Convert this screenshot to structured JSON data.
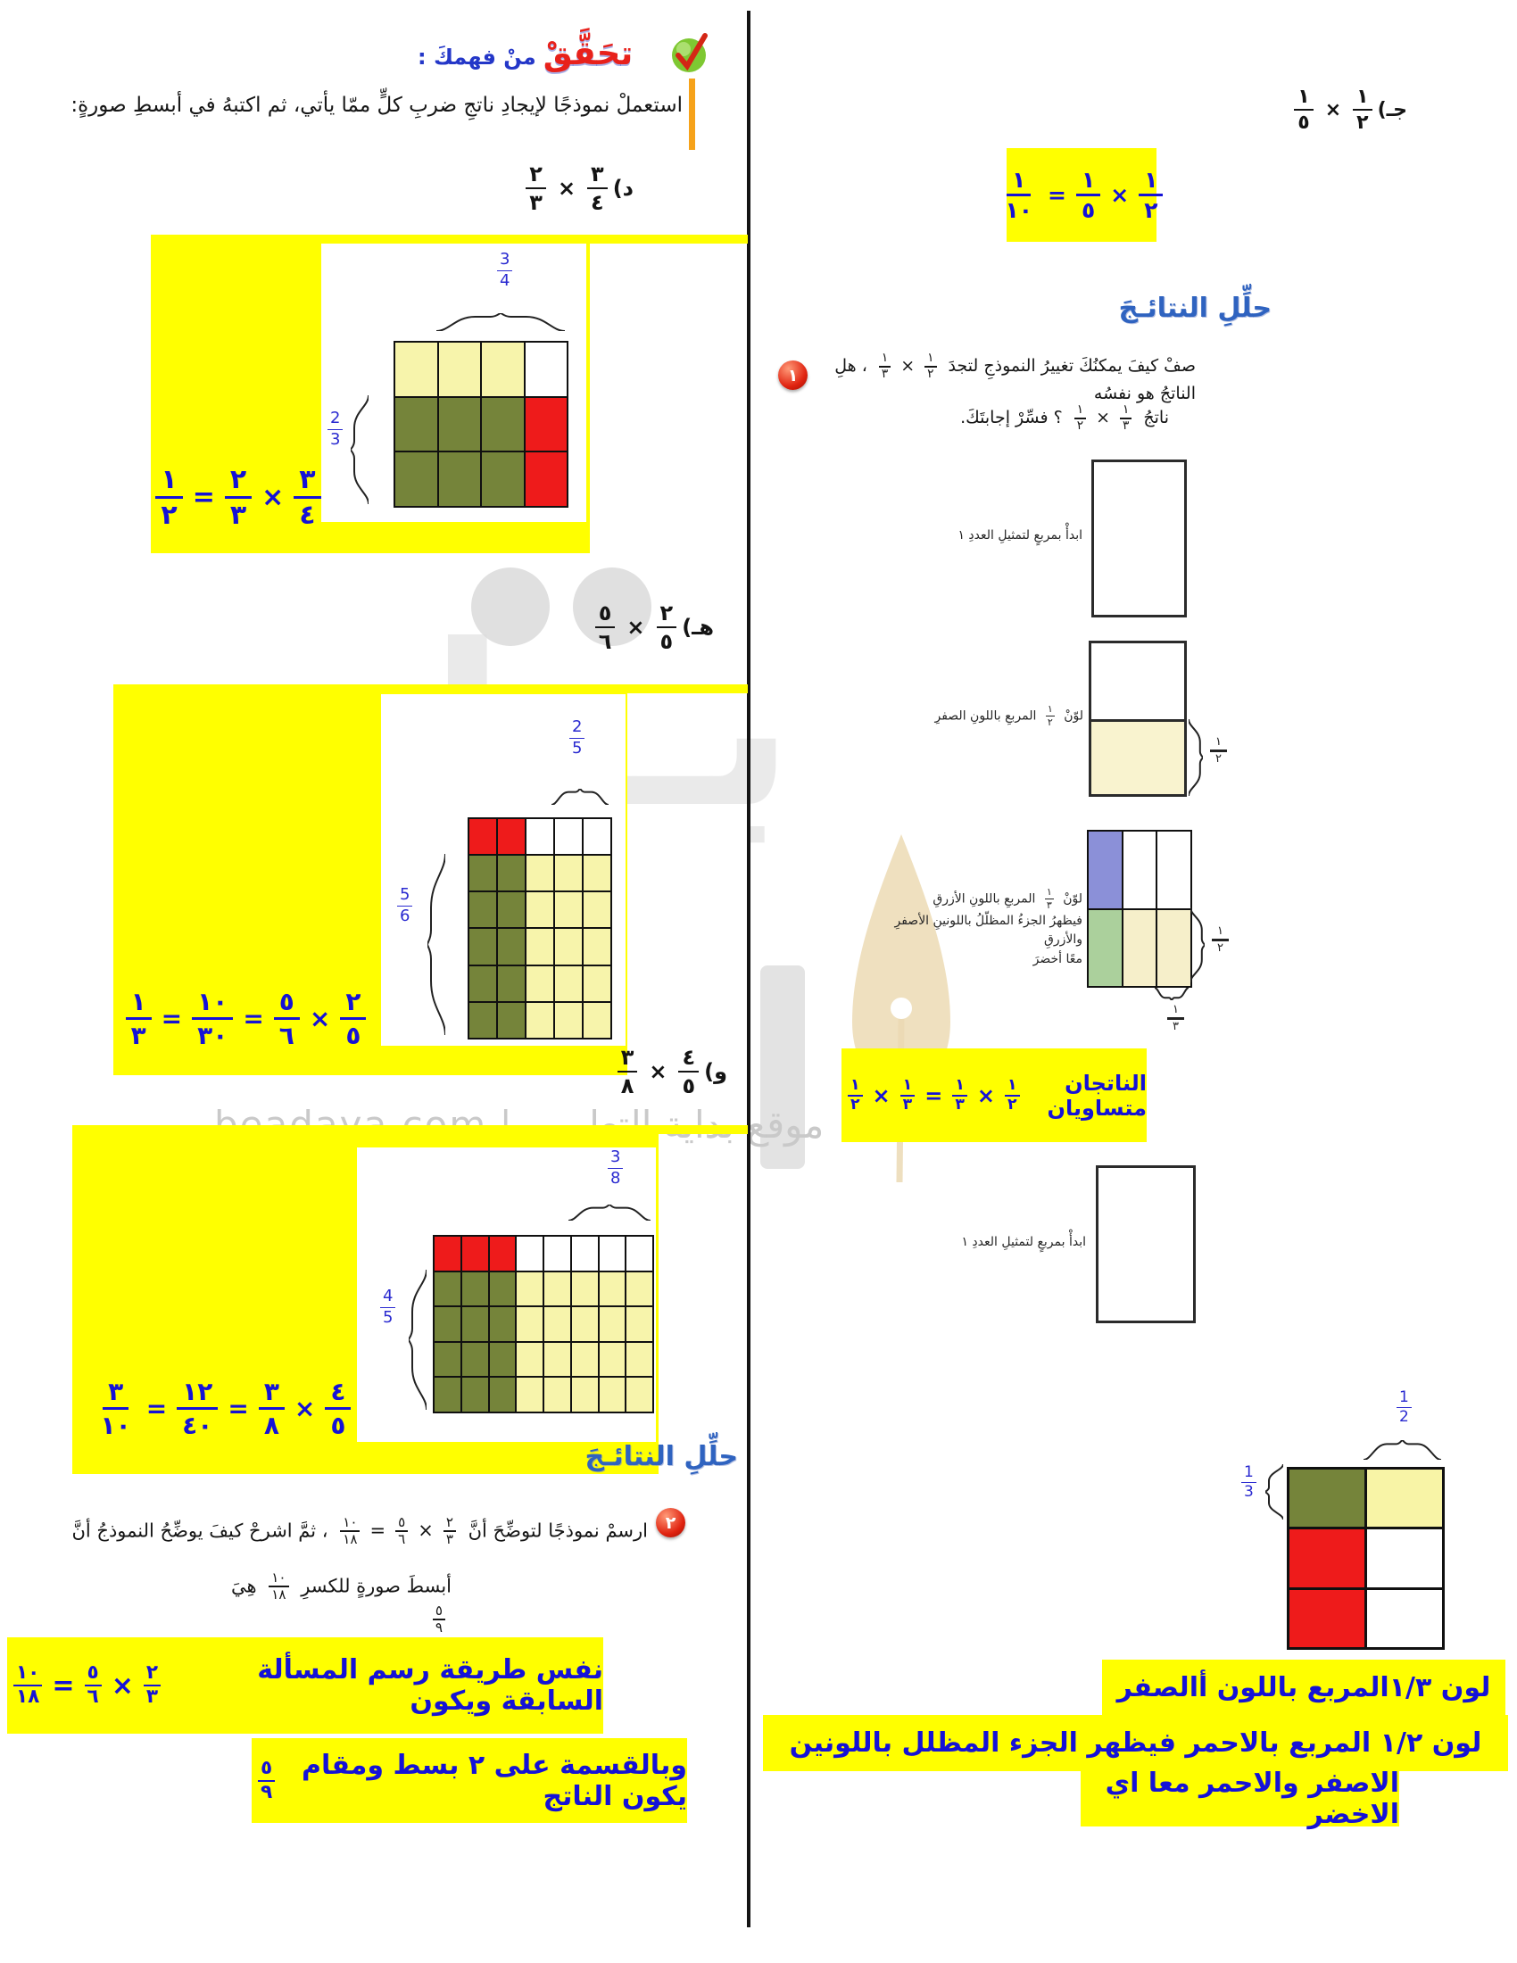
{
  "colors": {
    "white": "#ffffff",
    "cream": "#f7f4ab",
    "olive": "#75843a",
    "red": "#ee1b1b",
    "periwinkle": "#8b90d8",
    "lightgreen": "#abd09c",
    "cream2": "#f6efca",
    "paleyellow": "#f8f4a6",
    "highlight": "#ffff00",
    "ink_blue": "#1512d6",
    "header_blue": "#2f63c0",
    "logo_red": "#e8211b",
    "accent_orange": "#f6a21a"
  },
  "watermark": {
    "big_word": "بـدايـة",
    "site_line": "موقع بداية التعليمي | beadaya.com"
  },
  "left": {
    "check_title_red": "تحَقَّقْ",
    "check_title_blue": "منْ فهمكَ :",
    "instruction": "استعملْ نموذجًا لإيجادِ ناتجِ ضربِ كلٍّ ممّا يأتي، ثم اكتبهُ في أبسطِ صورةٍ:",
    "ex_d": [
      {
        "t": "د)  "
      },
      {
        "n": "٣",
        "d": "٤"
      },
      {
        "op": "×"
      },
      {
        "n": "٢",
        "d": "٣"
      }
    ],
    "model_d": {
      "top_label": {
        "n": "3",
        "d": "4"
      },
      "side_label": {
        "n": "2",
        "d": "3"
      },
      "grid": {
        "rows": [
          [
            "white",
            "cream",
            "cream",
            "cream"
          ],
          [
            "red",
            "olive",
            "olive",
            "olive"
          ],
          [
            "red",
            "olive",
            "olive",
            "olive"
          ]
        ]
      },
      "equation": [
        {
          "n": "٣",
          "d": "٤"
        },
        {
          "op": "×"
        },
        {
          "n": "٢",
          "d": "٣"
        },
        {
          "op": "="
        },
        {
          "n": "١",
          "d": "٢"
        }
      ]
    },
    "ex_h": [
      {
        "t": "هـ)  "
      },
      {
        "n": "٢",
        "d": "٥"
      },
      {
        "op": "×"
      },
      {
        "n": "٥",
        "d": "٦"
      }
    ],
    "model_h": {
      "top_label": {
        "n": "2",
        "d": "5"
      },
      "side_label": {
        "n": "5",
        "d": "6"
      },
      "grid": {
        "rows": [
          [
            "white",
            "white",
            "white",
            "red",
            "red"
          ],
          [
            "cream",
            "cream",
            "cream",
            "olive",
            "olive"
          ],
          [
            "cream",
            "cream",
            "cream",
            "olive",
            "olive"
          ],
          [
            "cream",
            "cream",
            "cream",
            "olive",
            "olive"
          ],
          [
            "cream",
            "cream",
            "cream",
            "olive",
            "olive"
          ],
          [
            "cream",
            "cream",
            "cream",
            "olive",
            "olive"
          ]
        ]
      },
      "equation": [
        {
          "n": "٢",
          "d": "٥"
        },
        {
          "op": "×"
        },
        {
          "n": "٥",
          "d": "٦"
        },
        {
          "op": "="
        },
        {
          "n": "١٠",
          "d": "٣٠"
        },
        {
          "op": "="
        },
        {
          "n": "١",
          "d": "٣"
        }
      ]
    },
    "ex_w": [
      {
        "t": "و)  "
      },
      {
        "n": "٤",
        "d": "٥"
      },
      {
        "op": "×"
      },
      {
        "n": "٣",
        "d": "٨"
      }
    ],
    "model_w": {
      "top_label": {
        "n": "3",
        "d": "8"
      },
      "side_label": {
        "n": "4",
        "d": "5"
      },
      "grid": {
        "rows": [
          [
            "white",
            "white",
            "white",
            "white",
            "white",
            "red",
            "red",
            "red"
          ],
          [
            "cream",
            "cream",
            "cream",
            "cream",
            "cream",
            "olive",
            "olive",
            "olive"
          ],
          [
            "cream",
            "cream",
            "cream",
            "cream",
            "cream",
            "olive",
            "olive",
            "olive"
          ],
          [
            "cream",
            "cream",
            "cream",
            "cream",
            "cream",
            "olive",
            "olive",
            "olive"
          ],
          [
            "cream",
            "cream",
            "cream",
            "cream",
            "cream",
            "olive",
            "olive",
            "olive"
          ]
        ]
      },
      "equation": [
        {
          "n": "٤",
          "d": "٥"
        },
        {
          "op": "×"
        },
        {
          "n": "٣",
          "d": "٨"
        },
        {
          "op": "="
        },
        {
          "n": "١٢",
          "d": "٤٠"
        },
        {
          "op": "="
        },
        {
          "n": "٣",
          "d": "١٠"
        }
      ]
    },
    "analyze_header": "حلِّلِ النتائـجَ",
    "q2_number": "٢",
    "q2_line1": [
      {
        "t": "ارسمْ نموذجًا لتوضِّحَ أنَّ "
      },
      {
        "n": "٢",
        "d": "٣"
      },
      {
        "op": "×"
      },
      {
        "n": "٥",
        "d": "٦"
      },
      {
        "op": "="
      },
      {
        "n": "١٠",
        "d": "١٨"
      },
      {
        "t": " ، ثمَّ اشرحْ كيفَ يوضِّحُ النموذجُ أنَّ"
      }
    ],
    "q2_line2": [
      {
        "t": "أبسطَ صورةٍ للكسرِ "
      },
      {
        "n": "١٠",
        "d": "١٨"
      },
      {
        "t": " هِيَ "
      },
      {
        "n": "٥",
        "d": "٩"
      }
    ],
    "answer1": [
      {
        "t": "نفس طريقة رسم المسألة السابقة ويكون "
      },
      {
        "n": "٢",
        "d": "٣"
      },
      {
        "op": "×"
      },
      {
        "n": "٥",
        "d": "٦"
      },
      {
        "op": "="
      },
      {
        "n": "١٠",
        "d": "١٨"
      }
    ],
    "answer2": [
      {
        "t": "وبالقسمة على ٢ بسط ومقام يكون الناتج "
      },
      {
        "n": "٥",
        "d": "٩"
      }
    ]
  },
  "right": {
    "ex_j": [
      {
        "t": "جـ)  "
      },
      {
        "n": "١",
        "d": "٢"
      },
      {
        "op": "×"
      },
      {
        "n": "١",
        "d": "٥"
      }
    ],
    "eq_j": [
      {
        "n": "١",
        "d": "٢"
      },
      {
        "op": "×"
      },
      {
        "n": "١",
        "d": "٥"
      },
      {
        "op": "="
      },
      {
        "n": "١",
        "d": "١٠"
      }
    ],
    "analyze_header": "حلِّلِ النتائـجَ",
    "q1_number": "١",
    "q1_line1": [
      {
        "t": "صفْ كيفَ يمكنُكَ تغييرُ النموذجِ لتجدَ "
      },
      {
        "n": "١",
        "d": "٢"
      },
      {
        "op": "×"
      },
      {
        "n": "١",
        "d": "٣"
      },
      {
        "t": " ، هلِ الناتجُ هو نفسُه"
      }
    ],
    "q1_line2": [
      {
        "t": "ناتجُ "
      },
      {
        "n": "١",
        "d": "٣"
      },
      {
        "op": "×"
      },
      {
        "n": "١",
        "d": "٢"
      },
      {
        "t": " ؟ فسِّرْ إجابتَكَ."
      }
    ],
    "caption_start_1": "ابدأْ بمربعٍ لتمثيلِ العددِ ١",
    "caption_half": [
      {
        "t": "لوّنْ "
      },
      {
        "n": "١",
        "d": "٢"
      },
      {
        "t": " المربعِ باللونِ الصفرِ"
      }
    ],
    "sq2_brace_label": {
      "n": "١",
      "d": "٢"
    },
    "caption_third_l1": [
      {
        "t": "لوّنْ "
      },
      {
        "n": "١",
        "d": "٣"
      },
      {
        "t": " المربعِ باللونِ الأزرقِ"
      }
    ],
    "caption_third_l2": "فيظهرُ الجزءُ المظلّلُ باللونينِ الأصفرِ والأزرقِ",
    "caption_third_l3": "معًا أخضرَ",
    "grid3": {
      "rows": [
        [
          "white",
          "white",
          "periwinkle"
        ],
        [
          "cream2",
          "cream2",
          "lightgreen"
        ]
      ]
    },
    "sq3_brace_right": {
      "n": "١",
      "d": "٢"
    },
    "sq3_brace_bottom": {
      "n": "١",
      "d": "٣"
    },
    "equal_line": [
      {
        "t": "الناتجان متساويان "
      },
      {
        "n": "١",
        "d": "٢"
      },
      {
        "op": "×"
      },
      {
        "n": "١",
        "d": "٣"
      },
      {
        "op": "="
      },
      {
        "n": "١",
        "d": "٣"
      },
      {
        "op": "×"
      },
      {
        "n": "١",
        "d": "٢"
      }
    ],
    "caption_start_2": "ابدأْ بمربعٍ لتمثيلِ العددِ ١",
    "grid5": {
      "top_label": {
        "n": "1",
        "d": "2"
      },
      "side_label": {
        "n": "1",
        "d": "3"
      },
      "rows": [
        [
          "paleyellow",
          "olive"
        ],
        [
          "white",
          "red"
        ],
        [
          "white",
          "red"
        ]
      ]
    },
    "yellow_line1": "لون ١/٣المربع باللون أالصفر",
    "yellow_line2": "لون ١/٢ المربع بالاحمر فيظهر الجزء المظلل باللونين",
    "yellow_line3": "الاصفر والاحمر معا اي الاخضر"
  }
}
